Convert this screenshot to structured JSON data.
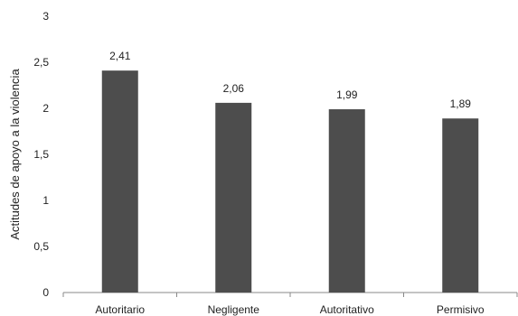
{
  "chart_data": {
    "type": "bar",
    "title": "",
    "xlabel": "",
    "ylabel": "Actitudes de apoyo a la violencia",
    "categories": [
      "Autoritario",
      "Negligente",
      "Autoritativo",
      "Permisivo"
    ],
    "values": [
      2.41,
      2.06,
      1.99,
      1.89
    ],
    "value_labels": [
      "2,41",
      "2,06",
      "1,99",
      "1,89"
    ],
    "ylim": [
      0,
      3
    ],
    "yticks": [
      0,
      0.5,
      1,
      1.5,
      2,
      2.5,
      3
    ],
    "ytick_labels": [
      "0",
      "0,5",
      "1",
      "1,5",
      "2",
      "2,5",
      "3"
    ],
    "grid": false,
    "legend": "none",
    "colors": {
      "bar": "#4d4d4d",
      "axis": "#888888",
      "text": "#222222"
    }
  }
}
